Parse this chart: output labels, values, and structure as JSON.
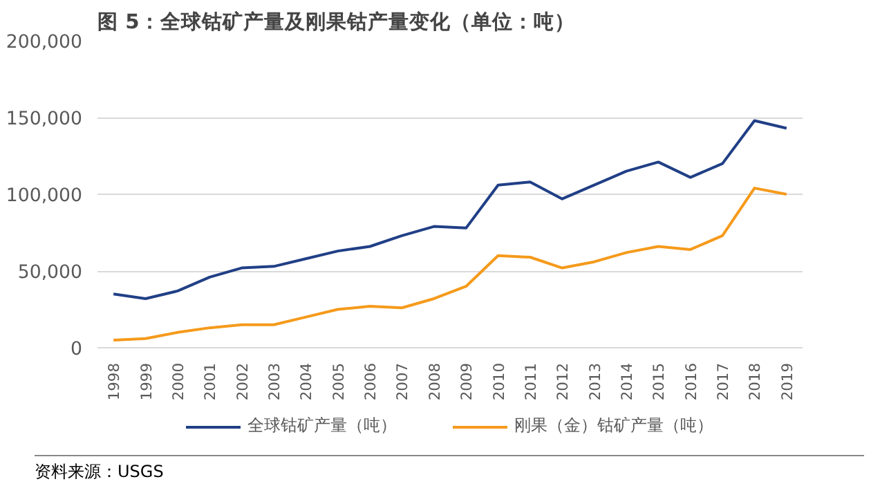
{
  "chart_data": {
    "type": "line",
    "title": "图 5：全球钴矿产量及刚果钴产量变化（单位：吨）",
    "categories": [
      "1998",
      "1999",
      "2000",
      "2001",
      "2002",
      "2003",
      "2004",
      "2005",
      "2006",
      "2007",
      "2008",
      "2009",
      "2010",
      "2011",
      "2012",
      "2013",
      "2014",
      "2015",
      "2016",
      "2017",
      "2018",
      "2019"
    ],
    "series": [
      {
        "name": "全球钴矿产量（吨）",
        "color": "#203f86",
        "values": [
          35000,
          32000,
          37000,
          46000,
          52000,
          53000,
          58000,
          63000,
          66000,
          73000,
          79000,
          78000,
          106000,
          108000,
          97000,
          106000,
          115000,
          121000,
          111000,
          120000,
          148000,
          143000
        ]
      },
      {
        "name": "刚果（金）钴矿产量（吨）",
        "color": "#f59a1b",
        "values": [
          5000,
          6000,
          10000,
          13000,
          15000,
          15000,
          20000,
          25000,
          27000,
          26000,
          32000,
          40000,
          60000,
          59000,
          52000,
          56000,
          62000,
          66000,
          64000,
          73000,
          104000,
          100000
        ]
      }
    ],
    "ylim": [
      0,
      200000
    ],
    "yticks": [
      {
        "value": 0,
        "label": "0"
      },
      {
        "value": 50000,
        "label": "50,000"
      },
      {
        "value": 100000,
        "label": "100,000"
      },
      {
        "value": 150000,
        "label": "150,000"
      },
      {
        "value": 200000,
        "label": "200,000"
      }
    ],
    "grid": "y",
    "legend": "bottom",
    "marker": "none",
    "line_style": "solid",
    "annotations": [
      "资料来源：USGS"
    ]
  }
}
